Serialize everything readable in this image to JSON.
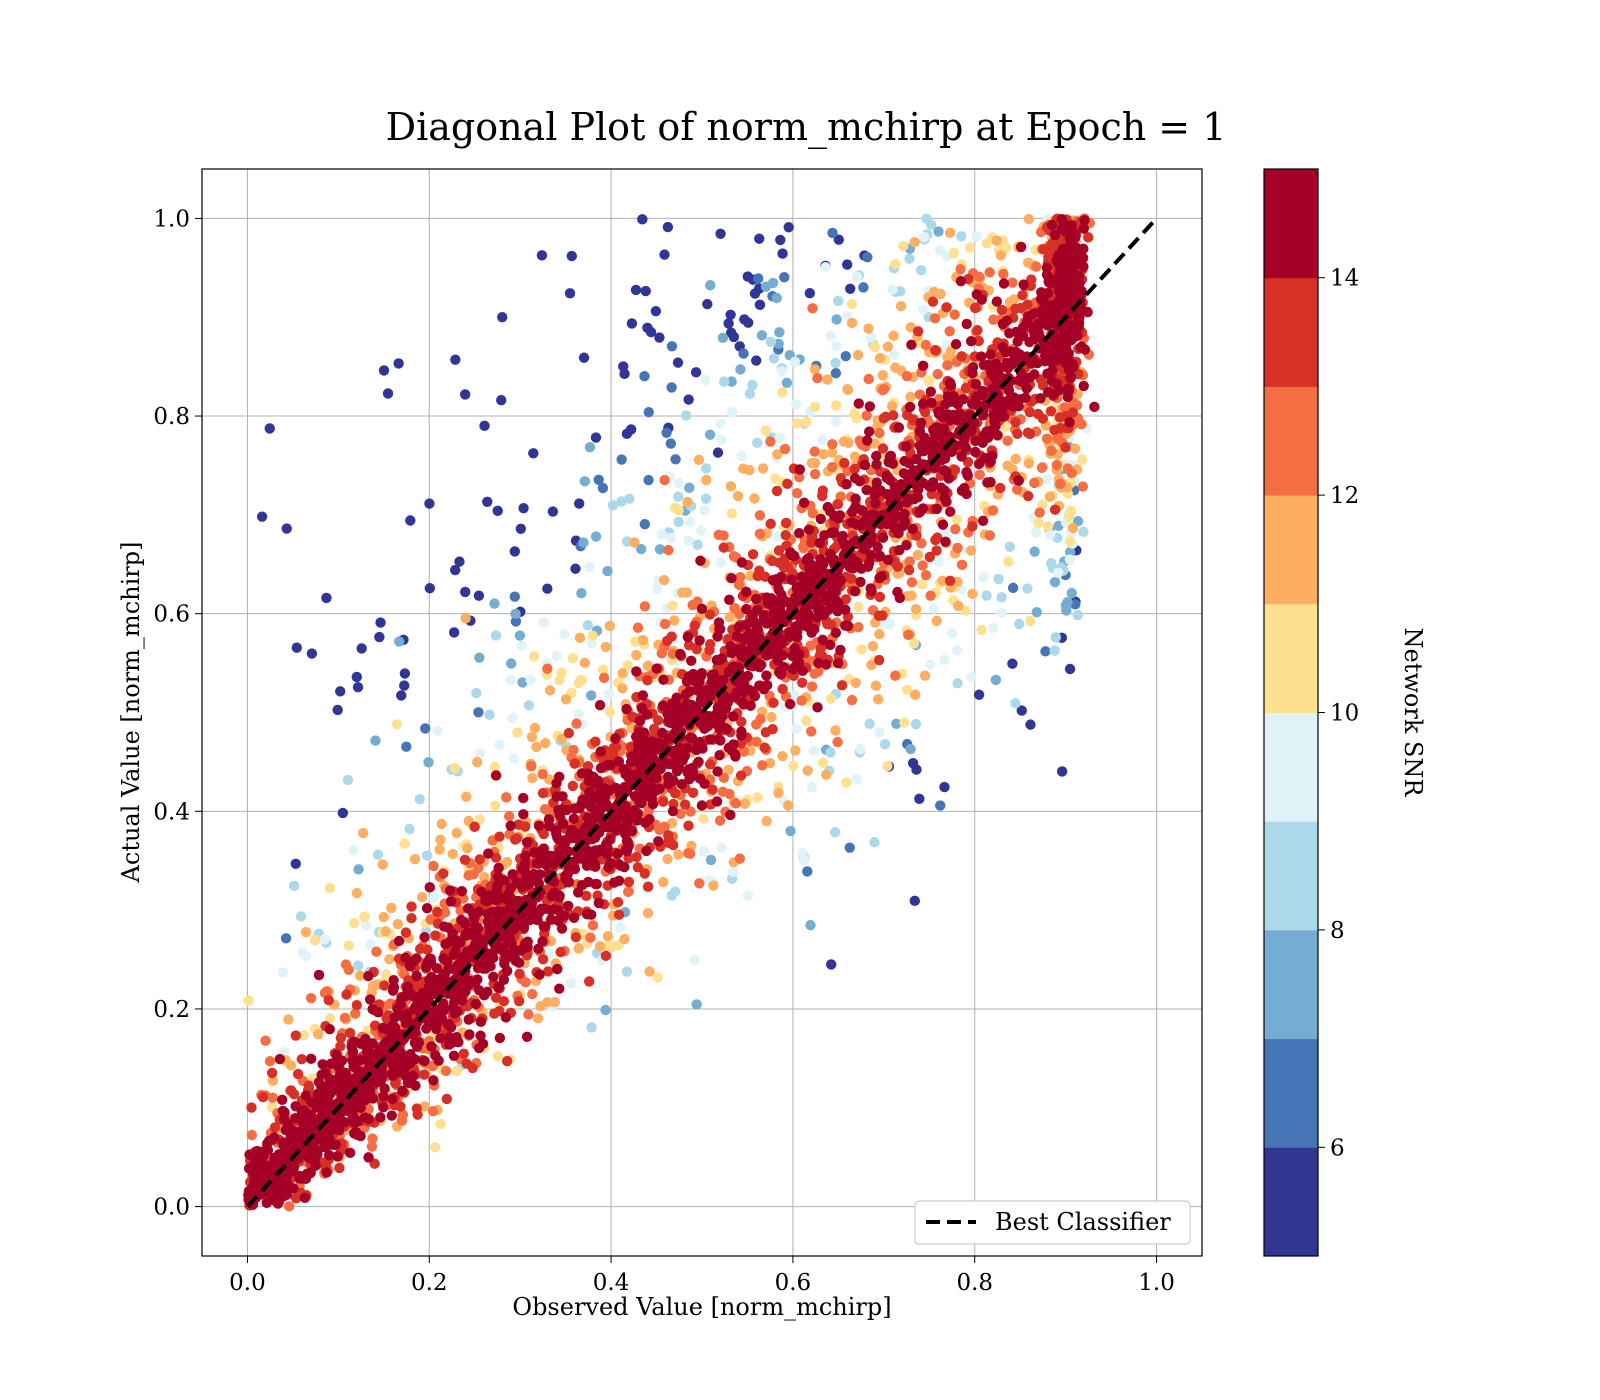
{
  "chart_data": {
    "type": "scatter",
    "title": "Diagonal Plot of norm_mchirp at Epoch = 1",
    "xlabel": "Observed Value [norm_mchirp]",
    "ylabel": "Actual Value [norm_mchirp]",
    "xlim": [
      -0.05,
      1.05
    ],
    "ylim": [
      -0.05,
      1.05
    ],
    "xticks": [
      "0.0",
      "0.2",
      "0.4",
      "0.6",
      "0.8",
      "1.0"
    ],
    "yticks": [
      "0.0",
      "0.2",
      "0.4",
      "0.6",
      "0.8",
      "1.0"
    ],
    "grid": true,
    "reference_line": {
      "name": "Best Classifier",
      "x": [
        0,
        1
      ],
      "y": [
        0,
        1
      ],
      "style": "dashed",
      "color": "#000000"
    },
    "legend": {
      "placement": "lower-right",
      "entries": [
        "Best Classifier"
      ]
    },
    "colorbar": {
      "label": "Network SNR",
      "range": [
        5,
        15
      ],
      "ticks": [
        "6",
        "8",
        "10",
        "12",
        "14"
      ],
      "colors": [
        "#313695",
        "#4575b4",
        "#74add1",
        "#abd9e9",
        "#e0f3f8",
        "#fee090",
        "#fdae61",
        "#f46d43",
        "#d73027",
        "#a50026"
      ]
    },
    "points_summary": [
      {
        "region": "near diagonal y≈x, x from 0.0 to 0.9",
        "snr": "high (≥14)"
      },
      {
        "region": "upper-left, y much greater than x",
        "snr": "low (5–9)"
      },
      {
        "region": "lower-right, y much less than x",
        "snr": "low to medium (5–11)"
      }
    ]
  }
}
